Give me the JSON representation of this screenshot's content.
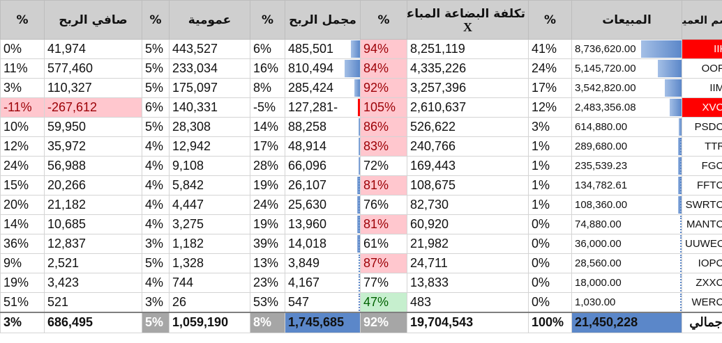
{
  "headers": {
    "customer": "اسم العميل",
    "sales": "المبيعات",
    "sales_pct": "%",
    "cogs": "تكلفة البضاعة المباعة",
    "cogs_sub": "X",
    "cogs_pct": "%",
    "gross_profit": "مجمل الربح",
    "gross_pct": "%",
    "overhead": "عمومية",
    "overhead_pct": "%",
    "net_profit": "صافي الربح",
    "net_pct": "%"
  },
  "rows": [
    {
      "name": "IIKJ",
      "sales": "8,736,620.00",
      "sales_pct": "41%",
      "cogs": "8,251,119",
      "cogs_pct": "94%",
      "gross": "485,501",
      "gross_pct": "6%",
      "overhead": "443,527",
      "overhead_pct": "5%",
      "net": "41,974",
      "net_pct": "0%",
      "sales_share": 0.41,
      "gross_share": 0.28
    },
    {
      "name": "OOPS",
      "sales": "5,145,720.00",
      "sales_pct": "24%",
      "cogs": "4,335,226",
      "cogs_pct": "84%",
      "gross": "810,494",
      "gross_pct": "16%",
      "overhead": "233,034",
      "overhead_pct": "5%",
      "net": "577,460",
      "net_pct": "11%",
      "sales_share": 0.24,
      "gross_share": 0.46
    },
    {
      "name": "IIMN",
      "sales": "3,542,820.00",
      "sales_pct": "17%",
      "cogs": "3,257,396",
      "cogs_pct": "92%",
      "gross": "285,424",
      "gross_pct": "8%",
      "overhead": "175,097",
      "overhead_pct": "5%",
      "net": "110,327",
      "net_pct": "3%",
      "sales_share": 0.17,
      "gross_share": 0.16
    },
    {
      "name": "XVCO",
      "sales": "2,483,356.08",
      "sales_pct": "12%",
      "cogs": "2,610,637",
      "cogs_pct": "105%",
      "gross": "127,281-",
      "gross_pct": "-5%",
      "overhead": "140,331",
      "overhead_pct": "6%",
      "net": "-267,612",
      "net_pct": "-11%",
      "sales_share": 0.12,
      "gross_share": -0.07
    },
    {
      "name": "PSDCO",
      "sales": "614,880.00",
      "sales_pct": "3%",
      "cogs": "526,622",
      "cogs_pct": "86%",
      "gross": "88,258",
      "gross_pct": "14%",
      "overhead": "28,308",
      "overhead_pct": "5%",
      "net": "59,950",
      "net_pct": "10%",
      "sales_share": 0.03,
      "gross_share": 0.05
    },
    {
      "name": "TTRY",
      "sales": "289,680.00",
      "sales_pct": "1%",
      "cogs": "240,766",
      "cogs_pct": "83%",
      "gross": "48,914",
      "gross_pct": "17%",
      "overhead": "12,942",
      "overhead_pct": "4%",
      "net": "35,972",
      "net_pct": "12%",
      "sales_share": 0.01,
      "gross_share": 0.03
    },
    {
      "name": "FGCO",
      "sales": "235,539.23",
      "sales_pct": "1%",
      "cogs": "169,443",
      "cogs_pct": "72%",
      "gross": "66,096",
      "gross_pct": "28%",
      "overhead": "9,108",
      "overhead_pct": "4%",
      "net": "56,988",
      "net_pct": "24%",
      "sales_share": 0.01,
      "gross_share": 0.04
    },
    {
      "name": "FFTCO",
      "sales": "134,782.61",
      "sales_pct": "1%",
      "cogs": "108,675",
      "cogs_pct": "81%",
      "gross": "26,107",
      "gross_pct": "19%",
      "overhead": "5,842",
      "overhead_pct": "4%",
      "net": "20,266",
      "net_pct": "15%",
      "sales_share": 0.01,
      "gross_share": 0.015
    },
    {
      "name": "SWRTCO",
      "sales": "108,360.00",
      "sales_pct": "1%",
      "cogs": "82,730",
      "cogs_pct": "76%",
      "gross": "25,630",
      "gross_pct": "24%",
      "overhead": "4,447",
      "overhead_pct": "4%",
      "net": "21,182",
      "net_pct": "20%",
      "sales_share": 0.01,
      "gross_share": 0.015
    },
    {
      "name": "MANTCO",
      "sales": "74,880.00",
      "sales_pct": "0%",
      "cogs": "60,920",
      "cogs_pct": "81%",
      "gross": "13,960",
      "gross_pct": "19%",
      "overhead": "3,275",
      "overhead_pct": "4%",
      "net": "10,685",
      "net_pct": "14%",
      "sales_share": 0.0,
      "gross_share": 0.01
    },
    {
      "name": "UUWECO",
      "sales": "36,000.00",
      "sales_pct": "0%",
      "cogs": "21,982",
      "cogs_pct": "61%",
      "gross": "14,018",
      "gross_pct": "39%",
      "overhead": "1,182",
      "overhead_pct": "3%",
      "net": "12,837",
      "net_pct": "36%",
      "sales_share": 0.0,
      "gross_share": 0.01
    },
    {
      "name": "IOPCO",
      "sales": "28,560.00",
      "sales_pct": "0%",
      "cogs": "24,711",
      "cogs_pct": "87%",
      "gross": "3,849",
      "gross_pct": "13%",
      "overhead": "1,328",
      "overhead_pct": "5%",
      "net": "2,521",
      "net_pct": "9%",
      "sales_share": 0.0,
      "gross_share": 0.0
    },
    {
      "name": "ZXXCO",
      "sales": "18,000.00",
      "sales_pct": "0%",
      "cogs": "13,833",
      "cogs_pct": "77%",
      "gross": "4,167",
      "gross_pct": "23%",
      "overhead": "744",
      "overhead_pct": "4%",
      "net": "3,423",
      "net_pct": "19%",
      "sales_share": 0.0,
      "gross_share": 0.0
    },
    {
      "name": "WERCO",
      "sales": "1,030.00",
      "sales_pct": "0%",
      "cogs": "483",
      "cogs_pct": "47%",
      "gross": "547",
      "gross_pct": "53%",
      "overhead": "26",
      "overhead_pct": "3%",
      "net": "521",
      "net_pct": "51%",
      "sales_share": 0.0,
      "gross_share": 0.0
    }
  ],
  "totals": {
    "label": "الإجمالي",
    "sales": "21,450,228",
    "sales_pct": "100%",
    "cogs": "19,704,543",
    "cogs_pct": "92%",
    "gross": "1,745,685",
    "gross_pct": "8%",
    "overhead": "1,059,190",
    "overhead_pct": "5%",
    "net": "686,495",
    "net_pct": "3%"
  },
  "colors": {
    "alert_cell": "#ff0000",
    "negative_fill": "#ffc7ce",
    "positive_fill": "#c6efce",
    "bar_blue": "#5b87c9",
    "header_grey": "#cfcfcf"
  }
}
